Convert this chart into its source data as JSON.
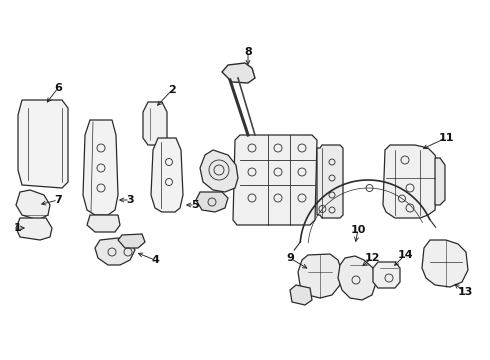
{
  "bg_color": "#ffffff",
  "line_color": "#2a2a2a",
  "lw": 0.9
}
